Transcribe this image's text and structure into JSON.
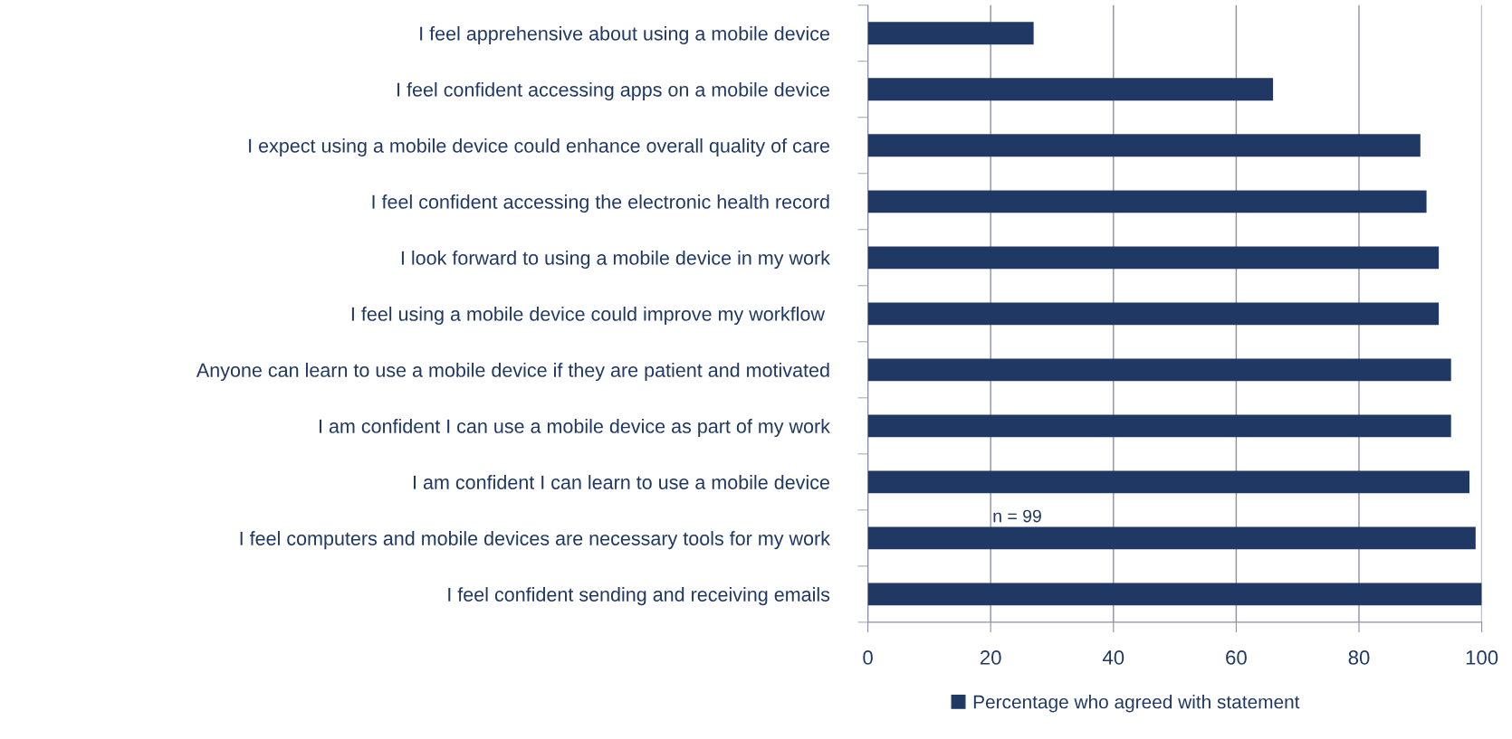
{
  "chart_data": {
    "type": "bar",
    "orientation": "horizontal",
    "categories": [
      "I feel apprehensive about using a mobile device",
      "I feel confident accessing apps on a mobile device",
      "I expect using a mobile device could enhance overall quality of care",
      "I feel confident accessing the electronic health record",
      "I look forward to using a mobile device in my work",
      "I feel using a mobile device could improve my workflow ",
      "Anyone can learn to use a mobile device if they are patient and motivated",
      "I am confident I can use a mobile device as part of my work",
      "I am confident I can learn to use a mobile device",
      "I feel computers and mobile devices are necessary tools for my work",
      "I feel confident sending and receiving emails"
    ],
    "series": [
      {
        "name": "Percentage who agreed with statement",
        "color": "#203864",
        "values": [
          27,
          66,
          90,
          91,
          93,
          93,
          95,
          95,
          98,
          99,
          100
        ]
      }
    ],
    "xlim": [
      0,
      100
    ],
    "xticks": [
      0,
      20,
      40,
      60,
      80,
      100
    ],
    "grid": "x",
    "legend": "bottom",
    "annotations": [
      "n = 99"
    ]
  }
}
